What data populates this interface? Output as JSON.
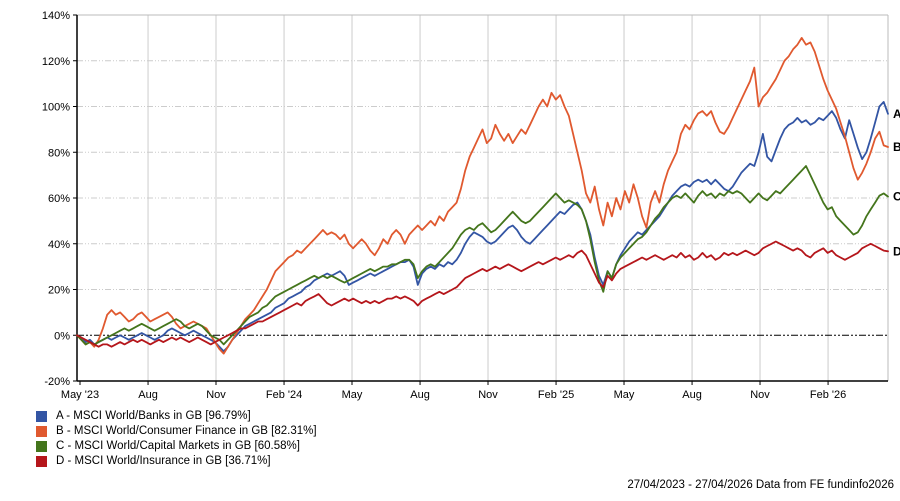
{
  "chart_data": {
    "type": "line",
    "title": "",
    "date_range": {
      "start": "27/04/2023",
      "end": "27/04/2026"
    },
    "grid_on": true,
    "legend_position": "bottom-left",
    "y_axis": {
      "min": -20,
      "max": 140,
      "unit": "%",
      "ticks": [
        {
          "value": 140,
          "label": "140%"
        },
        {
          "value": 120,
          "label": "120%"
        },
        {
          "value": 100,
          "label": "100%"
        },
        {
          "value": 80,
          "label": "80%"
        },
        {
          "value": 60,
          "label": "60%"
        },
        {
          "value": 40,
          "label": "40%"
        },
        {
          "value": 20,
          "label": "20%"
        },
        {
          "value": 0,
          "label": "0%"
        },
        {
          "value": -20,
          "label": "-20%"
        }
      ]
    },
    "x_axis": {
      "ticks": [
        {
          "f": 0.0037,
          "label": "May '23"
        },
        {
          "f": 0.0876,
          "label": "Aug"
        },
        {
          "f": 0.1714,
          "label": "Nov"
        },
        {
          "f": 0.2553,
          "label": "Feb '24"
        },
        {
          "f": 0.3391,
          "label": "May"
        },
        {
          "f": 0.423,
          "label": "Aug"
        },
        {
          "f": 0.5068,
          "label": "Nov"
        },
        {
          "f": 0.5907,
          "label": "Feb '25"
        },
        {
          "f": 0.6745,
          "label": "May"
        },
        {
          "f": 0.7584,
          "label": "Aug"
        },
        {
          "f": 0.8422,
          "label": "Nov"
        },
        {
          "f": 0.9261,
          "label": "Feb '26"
        }
      ]
    },
    "zero_line_value": 0,
    "colors": {
      "grid": "#cccccc",
      "axis": "#000000",
      "border_light": "#bbbbbb",
      "zero_line": "#000000"
    },
    "series": [
      {
        "id": "A",
        "name": "MSCI World/Banks in GB",
        "final_value": 96.79,
        "color": "#3355A4",
        "legend_label": "A - MSCI World/Banks in GB [96.79%]",
        "values": [
          0,
          -1,
          -3,
          -2,
          -4,
          -3,
          -2,
          -1,
          -2,
          -1,
          0,
          -1,
          -2,
          -1,
          0,
          1,
          0,
          -1,
          -2,
          -1,
          0,
          2,
          3,
          2,
          1,
          0,
          1,
          2,
          1,
          0,
          -1,
          -2,
          -3,
          -5,
          -7,
          -5,
          -2,
          0,
          2,
          4,
          5,
          6,
          7,
          8,
          9,
          10,
          12,
          13,
          14,
          16,
          17,
          18,
          19,
          21,
          22,
          24,
          25,
          26,
          27,
          26,
          27,
          28,
          26,
          22,
          23,
          24,
          25,
          26,
          27,
          26,
          27,
          28,
          29,
          30,
          31,
          32,
          32,
          33,
          30,
          22,
          27,
          29,
          30,
          29,
          31,
          30,
          32,
          31,
          33,
          36,
          40,
          43,
          45,
          44,
          43,
          41,
          40,
          41,
          43,
          45,
          47,
          48,
          46,
          43,
          41,
          40,
          42,
          44,
          46,
          48,
          50,
          52,
          54,
          53,
          55,
          57,
          58,
          55,
          50,
          44,
          34,
          26,
          22,
          28,
          25,
          31,
          35,
          38,
          41,
          43,
          45,
          44,
          46,
          48,
          50,
          52,
          55,
          58,
          61,
          63,
          65,
          66,
          65,
          67,
          68,
          67,
          68,
          66,
          68,
          66,
          64,
          63,
          65,
          68,
          71,
          73,
          75,
          74,
          80,
          88,
          78,
          76,
          81,
          86,
          90,
          92,
          93,
          95,
          93,
          94,
          92,
          93,
          95,
          94,
          96,
          98,
          95,
          90,
          86,
          94,
          88,
          82,
          77,
          80,
          86,
          93,
          100,
          102,
          96.8
        ]
      },
      {
        "id": "B",
        "name": "MSCI World/Consumer Finance in GB",
        "final_value": 82.31,
        "color": "#E0592F",
        "legend_label": "B - MSCI World/Consumer Finance in GB [82.31%]",
        "values": [
          0,
          -2,
          -4,
          -3,
          -5,
          -2,
          3,
          9,
          11,
          9,
          10,
          8,
          6,
          7,
          9,
          10,
          8,
          6,
          7,
          8,
          9,
          10,
          8,
          5,
          3,
          4,
          5,
          6,
          5,
          4,
          3,
          0,
          -3,
          -6,
          -8,
          -5,
          -2,
          1,
          4,
          7,
          9,
          11,
          14,
          17,
          20,
          24,
          28,
          30,
          32,
          34,
          35,
          37,
          36,
          38,
          40,
          42,
          44,
          46,
          44,
          45,
          44,
          42,
          44,
          40,
          38,
          40,
          42,
          40,
          37,
          35,
          38,
          42,
          40,
          44,
          46,
          44,
          40,
          44,
          46,
          48,
          46,
          48,
          50,
          48,
          52,
          50,
          54,
          56,
          58,
          64,
          72,
          78,
          82,
          86,
          90,
          84,
          86,
          92,
          88,
          85,
          88,
          84,
          87,
          90,
          88,
          92,
          96,
          100,
          103,
          100,
          106,
          103,
          105,
          100,
          96,
          88,
          80,
          72,
          62,
          58,
          65,
          55,
          48,
          58,
          52,
          60,
          55,
          63,
          58,
          66,
          60,
          52,
          47,
          58,
          63,
          58,
          66,
          72,
          76,
          80,
          88,
          92,
          90,
          94,
          97,
          98,
          96,
          98,
          93,
          89,
          88,
          91,
          95,
          99,
          103,
          107,
          111,
          117,
          100,
          104,
          106,
          109,
          112,
          116,
          120,
          122,
          125,
          127,
          130,
          127,
          128,
          124,
          118,
          112,
          107,
          103,
          99,
          93,
          87,
          80,
          73,
          68,
          71,
          75,
          80,
          86,
          89,
          83,
          82.3
        ]
      },
      {
        "id": "C",
        "name": "MSCI World/Capital Markets in GB",
        "final_value": 60.58,
        "color": "#44751C",
        "legend_label": "C - MSCI World/Capital Markets in GB [60.58%]",
        "values": [
          0,
          -2,
          -4,
          -3,
          -4,
          -3,
          -2,
          -1,
          0,
          1,
          2,
          3,
          2,
          3,
          4,
          5,
          4,
          3,
          2,
          3,
          4,
          5,
          6,
          7,
          6,
          4,
          3,
          4,
          5,
          4,
          2,
          0,
          -1,
          -2,
          -4,
          -2,
          0,
          2,
          4,
          6,
          8,
          9,
          10,
          12,
          13,
          15,
          17,
          18,
          19,
          20,
          21,
          22,
          23,
          24,
          25,
          26,
          25,
          26,
          25,
          26,
          25,
          24,
          23,
          24,
          25,
          26,
          27,
          28,
          29,
          28,
          29,
          30,
          30,
          31,
          31,
          32,
          33,
          33,
          31,
          25,
          28,
          30,
          31,
          30,
          32,
          34,
          36,
          38,
          41,
          44,
          46,
          47,
          46,
          48,
          49,
          47,
          45,
          46,
          48,
          50,
          52,
          54,
          52,
          50,
          49,
          50,
          52,
          54,
          56,
          58,
          60,
          62,
          60,
          58,
          59,
          58,
          57,
          55,
          50,
          42,
          32,
          24,
          19,
          28,
          25,
          31,
          34,
          36,
          38,
          40,
          42,
          43,
          45,
          48,
          51,
          53,
          56,
          58,
          60,
          61,
          60,
          62,
          60,
          58,
          61,
          63,
          61,
          62,
          60,
          62,
          61,
          63,
          62,
          63,
          62,
          60,
          58,
          60,
          62,
          60,
          59,
          61,
          63,
          62,
          64,
          66,
          68,
          70,
          72,
          74,
          70,
          66,
          62,
          58,
          55,
          56,
          52,
          50,
          48,
          46,
          44,
          45,
          48,
          52,
          55,
          58,
          61,
          62,
          60.6
        ]
      },
      {
        "id": "D",
        "name": "MSCI World/Insurance in GB",
        "final_value": 36.71,
        "color": "#B5161B",
        "legend_label": "D - MSCI World/Insurance in GB [36.71%]",
        "values": [
          0,
          -1,
          -2,
          -3,
          -4,
          -5,
          -4,
          -4,
          -5,
          -4,
          -3,
          -4,
          -3,
          -2,
          -3,
          -2,
          -3,
          -4,
          -3,
          -2,
          -3,
          -2,
          -1,
          -2,
          -1,
          -2,
          -3,
          -2,
          -1,
          -2,
          -3,
          -4,
          -3,
          -2,
          -1,
          0,
          1,
          2,
          3,
          3,
          4,
          5,
          6,
          6,
          7,
          8,
          9,
          10,
          11,
          12,
          13,
          14,
          13,
          15,
          16,
          17,
          18,
          16,
          14,
          13,
          14,
          15,
          16,
          15,
          16,
          15,
          14,
          15,
          14,
          15,
          14,
          15,
          16,
          16,
          17,
          16,
          17,
          16,
          15,
          13,
          15,
          16,
          17,
          18,
          19,
          18,
          19,
          20,
          21,
          23,
          25,
          26,
          27,
          28,
          29,
          28,
          29,
          30,
          29,
          30,
          31,
          30,
          29,
          28,
          29,
          30,
          31,
          32,
          31,
          32,
          33,
          34,
          33,
          34,
          35,
          34,
          36,
          37,
          35,
          31,
          27,
          23,
          21,
          26,
          24,
          27,
          29,
          30,
          31,
          32,
          33,
          34,
          33,
          34,
          35,
          34,
          33,
          34,
          35,
          34,
          36,
          34,
          35,
          33,
          34,
          36,
          34,
          35,
          33,
          34,
          36,
          35,
          36,
          35,
          36,
          37,
          36,
          35,
          36,
          38,
          39,
          40,
          41,
          40,
          39,
          38,
          37,
          38,
          37,
          35,
          34,
          36,
          37,
          38,
          36,
          37,
          35,
          34,
          33,
          34,
          35,
          36,
          38,
          39,
          40,
          39,
          38,
          37,
          36.7
        ]
      }
    ]
  },
  "footer": {
    "text": "27/04/2023 - 27/04/2026 Data from FE fundinfo2026"
  }
}
